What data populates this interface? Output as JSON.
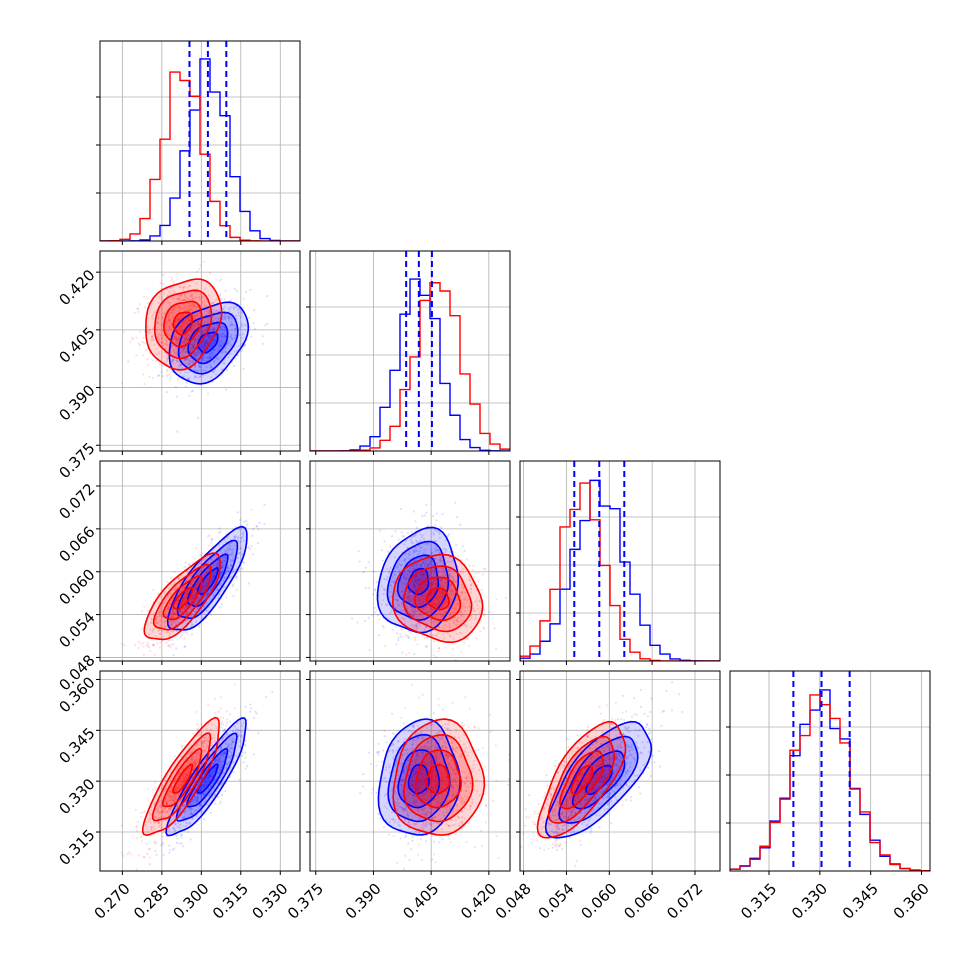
{
  "chart_data": {
    "type": "corner",
    "grid": true,
    "colors": {
      "series_a": "#0000ff",
      "series_b": "#ff0000"
    },
    "series": [
      {
        "color": "#0000ff",
        "mean": [
          0.3025,
          0.4018,
          0.0586,
          0.3305
        ],
        "std": [
          0.0075,
          0.0052,
          0.0036,
          0.0085
        ]
      },
      {
        "color": "#ff0000",
        "mean": [
          0.293,
          0.4068,
          0.0562,
          0.3305
        ],
        "std": [
          0.0072,
          0.0058,
          0.003,
          0.0085
        ]
      }
    ],
    "correlations": {
      "1-0": {
        "blue": 0.35,
        "red": 0.2
      },
      "2-0": {
        "blue": 0.8,
        "red": 0.75
      },
      "2-1": {
        "blue": 0.15,
        "red": -0.1
      },
      "3-0": {
        "blue": 0.88,
        "red": 0.85
      },
      "3-1": {
        "blue": 0.1,
        "red": 0.05
      },
      "3-2": {
        "blue": 0.7,
        "red": 0.7
      }
    },
    "quantile_lines": {
      "color": "#0000ff",
      "style": "dashed",
      "values": [
        [
          0.2955,
          0.3025,
          0.3095
        ],
        [
          0.3985,
          0.4018,
          0.4052
        ],
        [
          0.0551,
          0.0586,
          0.0621
        ],
        [
          0.3222,
          0.3305,
          0.3388
        ]
      ]
    },
    "axes": [
      {
        "range": [
          0.2615,
          0.3375
        ],
        "ticks": [
          "0.270",
          "0.285",
          "0.300",
          "0.315",
          "0.330"
        ],
        "tick_values": [
          0.27,
          0.285,
          0.3,
          0.315,
          0.33
        ]
      },
      {
        "range": [
          0.3735,
          0.4255
        ],
        "ticks": [
          "0.375",
          "0.390",
          "0.405",
          "0.420"
        ],
        "tick_values": [
          0.375,
          0.39,
          0.405,
          0.42
        ]
      },
      {
        "range": [
          0.0475,
          0.0755
        ],
        "ticks": [
          "0.048",
          "0.054",
          "0.060",
          "0.066",
          "0.072"
        ],
        "tick_values": [
          0.048,
          0.054,
          0.06,
          0.066,
          0.072
        ]
      },
      {
        "range": [
          0.3035,
          0.3625
        ],
        "ticks": [
          "0.315",
          "0.330",
          "0.345",
          "0.360"
        ],
        "tick_values": [
          0.315,
          0.33,
          0.345,
          0.36
        ]
      }
    ]
  }
}
